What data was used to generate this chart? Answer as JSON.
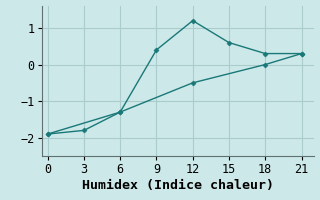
{
  "xlabel": "Humidex (Indice chaleur)",
  "background_color": "#cce8e8",
  "grid_color": "#aacccc",
  "line_color": "#1a7878",
  "line1_x": [
    0,
    6,
    9,
    12,
    15,
    18,
    21
  ],
  "line1_y": [
    -1.9,
    -1.3,
    0.4,
    1.2,
    0.6,
    0.3,
    0.3
  ],
  "line2_x": [
    0,
    3,
    6,
    12,
    18,
    21
  ],
  "line2_y": [
    -1.9,
    -1.8,
    -1.3,
    -0.5,
    0.0,
    0.3
  ],
  "xlim": [
    -0.5,
    22
  ],
  "ylim": [
    -2.5,
    1.6
  ],
  "xticks": [
    0,
    3,
    6,
    9,
    12,
    15,
    18,
    21
  ],
  "yticks": [
    -2,
    -1,
    0,
    1
  ],
  "marker": "D",
  "marker_size": 2.5,
  "line_width": 1.0,
  "tick_fontsize": 8.5,
  "xlabel_fontsize": 9.5
}
